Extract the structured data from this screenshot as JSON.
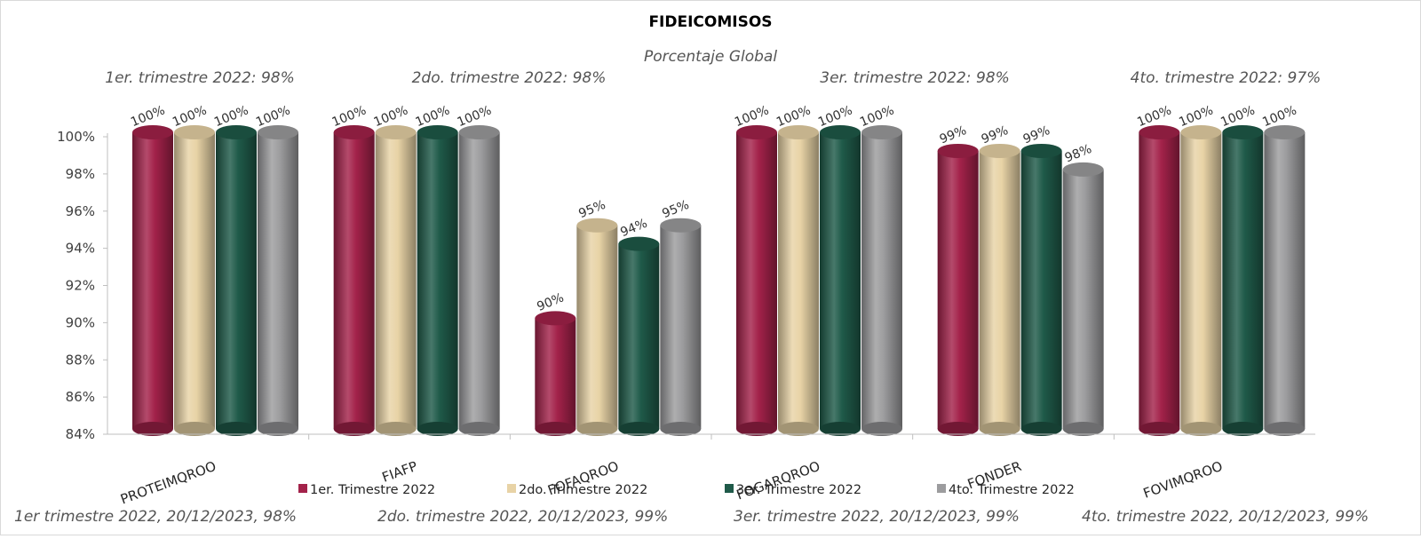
{
  "chart_data": {
    "type": "bar",
    "title": "FIDEICOMISOS",
    "subtitle": "Porcentaje Global",
    "xlabel": "",
    "ylabel": "",
    "ylim": [
      84,
      100
    ],
    "yticks": [
      "84%",
      "86%",
      "88%",
      "90%",
      "92%",
      "94%",
      "96%",
      "98%",
      "100%"
    ],
    "grid": false,
    "legend_position": "bottom",
    "categories": [
      "PROTEIMQROO",
      "FIAFP",
      "FOFAQROO",
      "FOGARQROO",
      "FONDER",
      "FOVIMQROO"
    ],
    "series": [
      {
        "name": "1er. Trimestre 2022",
        "values": [
          100,
          100,
          90,
          100,
          99,
          100
        ],
        "labels": [
          "100%",
          "100%",
          "90%",
          "100%",
          "99%",
          "100%"
        ],
        "color": "#A3224A"
      },
      {
        "name": "2do. Trimestre 2022",
        "values": [
          100,
          100,
          95,
          100,
          99,
          100
        ],
        "labels": [
          "100%",
          "100%",
          "95%",
          "100%",
          "99%",
          "100%"
        ],
        "color": "#E8D3A6"
      },
      {
        "name": "3er. Trimestre 2022",
        "values": [
          100,
          100,
          94,
          100,
          99,
          100
        ],
        "labels": [
          "100%",
          "100%",
          "94%",
          "100%",
          "99%",
          "100%"
        ],
        "color": "#1F5A49"
      },
      {
        "name": "4to. Trimestre 2022",
        "values": [
          100,
          100,
          95,
          100,
          98,
          100
        ],
        "labels": [
          "100%",
          "100%",
          "95%",
          "100%",
          "98%",
          "100%"
        ],
        "color": "#9C9C9E"
      }
    ],
    "annotations_top": [
      "1er. trimestre 2022: 98%",
      "2do. trimestre 2022: 98%",
      "3er. trimestre 2022: 98%",
      "4to. trimestre 2022: 97%"
    ],
    "annotations_bottom": [
      "1er trimestre  2022,  20/12/2023, 98%",
      "2do. trimestre 2022, 20/12/2023, 99%",
      "3er. trimestre 2022, 20/12/2023, 99%",
      "4to. trimestre 2022, 20/12/2023, 99%"
    ]
  }
}
